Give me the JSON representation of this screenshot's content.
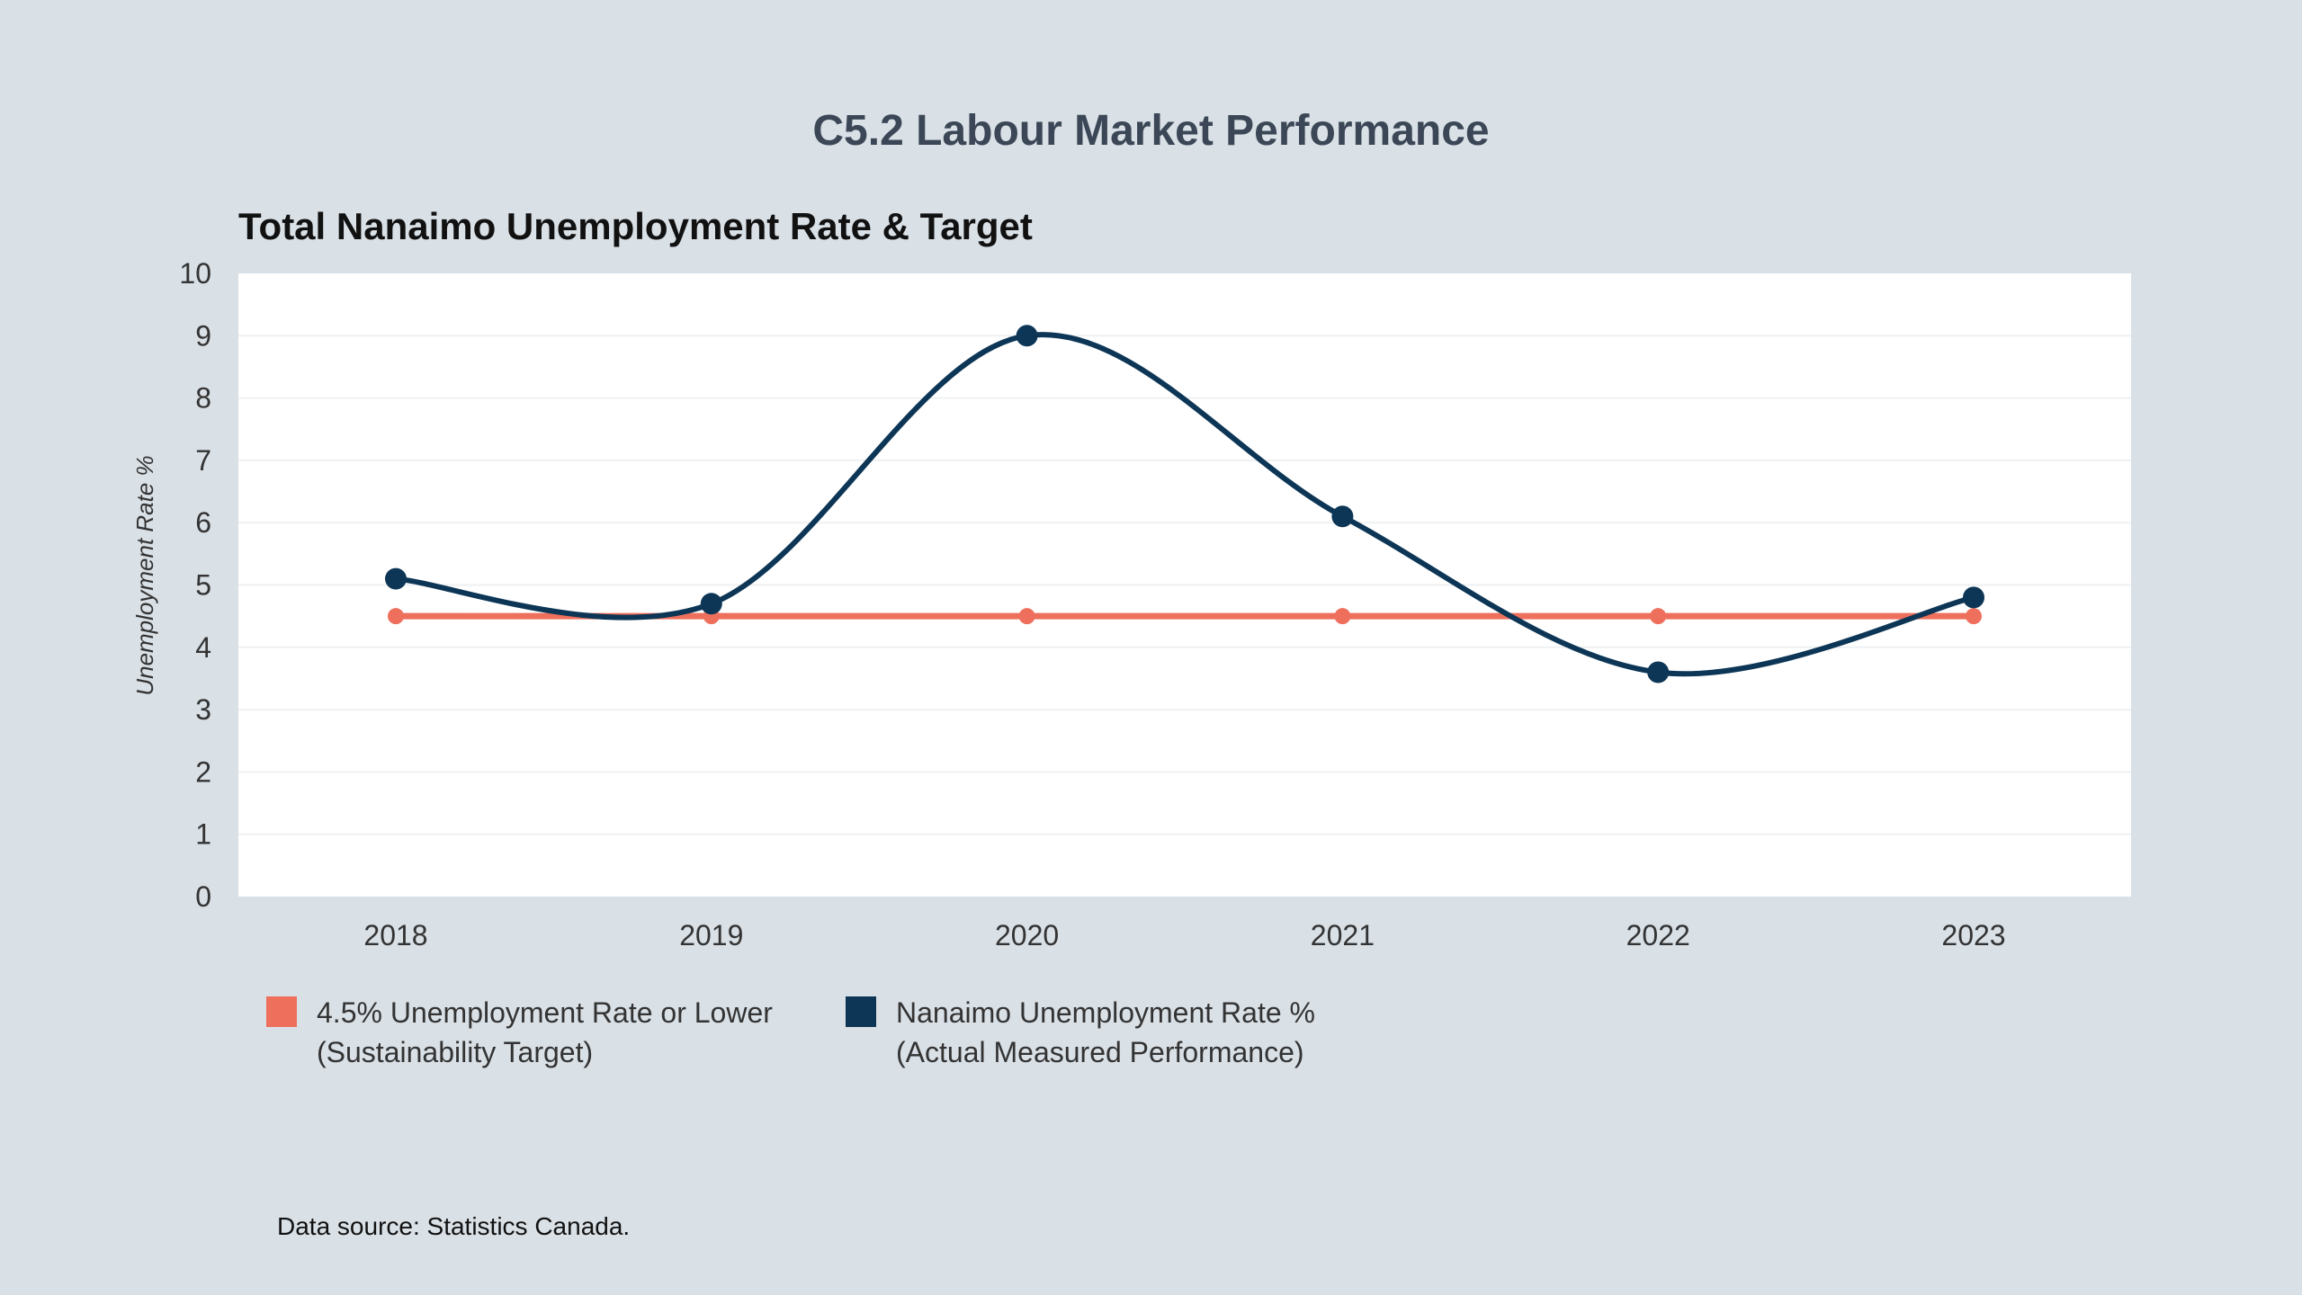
{
  "title": "C5.2 Labour Market Performance",
  "footer": {
    "source": "Data source: Statistics Canada."
  },
  "colors": {
    "target": "#ee6f5c",
    "actual": "#0d3656",
    "plot_bg": "#ffffff",
    "page_bg": "#d9e0e6"
  },
  "legend": {
    "target": {
      "line1": "4.5% Unemployment Rate or Lower",
      "line2": "(Sustainability Target)"
    },
    "actual": {
      "line1": "Nanaimo Unemployment Rate %",
      "line2": "(Actual Measured Performance)"
    }
  },
  "chart_data": {
    "type": "line",
    "title": "Total Nanaimo Unemployment Rate & Target",
    "xlabel": "",
    "ylabel": "Unemployment Rate %",
    "categories": [
      "2018",
      "2019",
      "2020",
      "2021",
      "2022",
      "2023"
    ],
    "ylim": [
      0,
      10
    ],
    "yticks": [
      0,
      1,
      2,
      3,
      4,
      5,
      6,
      7,
      8,
      9,
      10
    ],
    "grid": true,
    "legend_position": "bottom-left",
    "series": [
      {
        "key": "target",
        "values": [
          4.5,
          4.5,
          4.5,
          4.5,
          4.5,
          4.5
        ]
      },
      {
        "key": "actual",
        "values": [
          5.1,
          4.7,
          9.0,
          6.1,
          3.6,
          4.8
        ]
      }
    ]
  }
}
